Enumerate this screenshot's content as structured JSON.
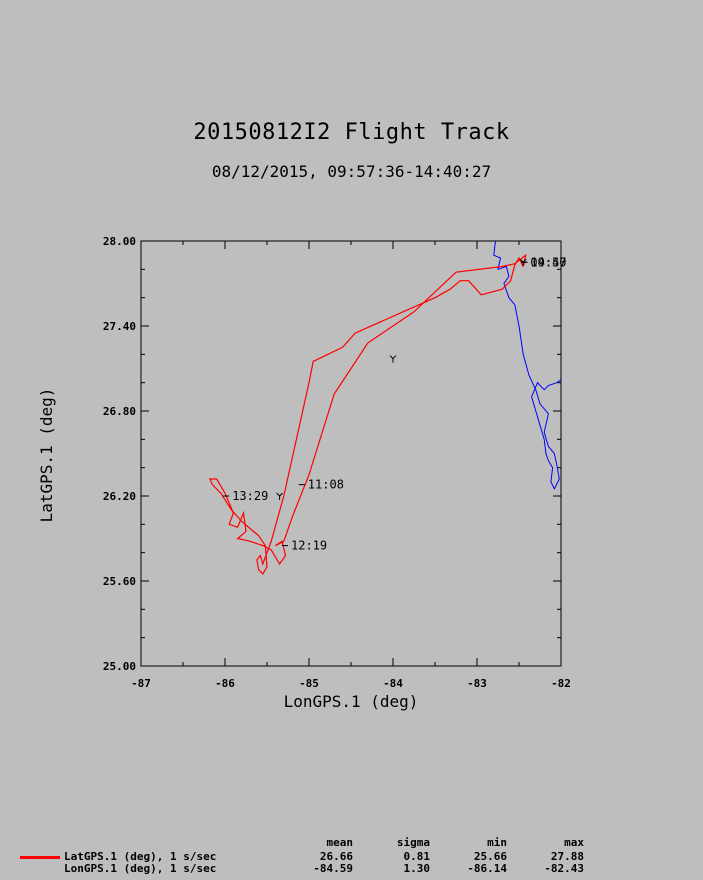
{
  "title": "20150812I2 Flight Track",
  "subtitle": "08/12/2015, 09:57:36-14:40:27",
  "chart_data": {
    "type": "line",
    "xlabel": "LonGPS.1 (deg)",
    "ylabel": "LatGPS.1 (deg)",
    "xlim": [
      -87,
      -82
    ],
    "ylim": [
      25.0,
      28.0
    ],
    "xticks": [
      "-87",
      "-86",
      "-85",
      "-84",
      "-83",
      "-82"
    ],
    "yticks": [
      "25.00",
      "25.60",
      "26.20",
      "26.80",
      "27.40",
      "28.00"
    ],
    "grid": false,
    "series": [
      {
        "name": "LatGPS.1 (deg), 1 s/sec",
        "color": "#ff0000",
        "points": [
          [
            -82.45,
            27.82
          ],
          [
            -82.5,
            27.88
          ],
          [
            -82.55,
            27.83
          ],
          [
            -82.6,
            27.72
          ],
          [
            -82.7,
            27.66
          ],
          [
            -82.95,
            27.62
          ],
          [
            -83.1,
            27.72
          ],
          [
            -83.2,
            27.72
          ],
          [
            -83.32,
            27.66
          ],
          [
            -83.5,
            27.6
          ],
          [
            -84.45,
            27.35
          ],
          [
            -84.6,
            27.25
          ],
          [
            -84.95,
            27.15
          ],
          [
            -85.0,
            27.0
          ],
          [
            -85.3,
            26.2
          ],
          [
            -85.45,
            25.88
          ],
          [
            -85.55,
            25.72
          ],
          [
            -85.58,
            25.78
          ],
          [
            -85.62,
            25.75
          ],
          [
            -85.6,
            25.68
          ],
          [
            -85.55,
            25.65
          ],
          [
            -85.5,
            25.7
          ],
          [
            -85.52,
            25.85
          ],
          [
            -85.6,
            25.92
          ],
          [
            -85.8,
            26.02
          ],
          [
            -85.92,
            26.1
          ],
          [
            -86.05,
            26.22
          ],
          [
            -86.15,
            26.28
          ],
          [
            -86.18,
            26.32
          ],
          [
            -86.1,
            26.32
          ],
          [
            -86.0,
            26.22
          ],
          [
            -85.95,
            26.15
          ],
          [
            -85.9,
            26.08
          ],
          [
            -85.95,
            26.0
          ],
          [
            -85.85,
            25.98
          ],
          [
            -85.78,
            26.08
          ],
          [
            -85.75,
            25.95
          ],
          [
            -85.85,
            25.9
          ],
          [
            -85.7,
            25.88
          ],
          [
            -85.55,
            25.85
          ],
          [
            -85.45,
            25.82
          ],
          [
            -85.35,
            25.72
          ],
          [
            -85.28,
            25.78
          ],
          [
            -85.32,
            25.88
          ],
          [
            -85.4,
            25.85
          ],
          [
            -85.3,
            25.88
          ],
          [
            -85.2,
            26.05
          ],
          [
            -85.0,
            26.35
          ],
          [
            -84.7,
            26.92
          ],
          [
            -84.5,
            27.1
          ],
          [
            -84.3,
            27.28
          ],
          [
            -83.75,
            27.5
          ],
          [
            -83.25,
            27.78
          ],
          [
            -82.7,
            27.82
          ],
          [
            -82.55,
            27.84
          ],
          [
            -82.42,
            27.9
          ],
          [
            -82.45,
            27.82
          ]
        ]
      },
      {
        "name": "LonGPS.1 (deg), 1 s/sec",
        "color": "#ff0000",
        "points": []
      }
    ],
    "coastline": {
      "color": "#0000ff",
      "points": [
        [
          -82.78,
          28.0
        ],
        [
          -82.8,
          27.9
        ],
        [
          -82.72,
          27.88
        ],
        [
          -82.75,
          27.8
        ],
        [
          -82.65,
          27.82
        ],
        [
          -82.62,
          27.75
        ],
        [
          -82.68,
          27.7
        ],
        [
          -82.62,
          27.6
        ],
        [
          -82.55,
          27.55
        ],
        [
          -82.5,
          27.4
        ],
        [
          -82.45,
          27.2
        ],
        [
          -82.38,
          27.05
        ],
        [
          -82.3,
          26.95
        ],
        [
          -82.25,
          26.85
        ],
        [
          -82.15,
          26.78
        ],
        [
          -82.2,
          26.65
        ],
        [
          -82.15,
          26.55
        ],
        [
          -82.08,
          26.5
        ],
        [
          -82.05,
          26.42
        ],
        [
          -82.02,
          26.32
        ],
        [
          -82.08,
          26.25
        ],
        [
          -82.12,
          26.3
        ],
        [
          -82.1,
          26.4
        ],
        [
          -82.15,
          26.45
        ],
        [
          -82.18,
          26.5
        ],
        [
          -82.2,
          26.6
        ],
        [
          -82.25,
          26.7
        ],
        [
          -82.3,
          26.8
        ],
        [
          -82.35,
          26.9
        ],
        [
          -82.28,
          27.0
        ],
        [
          -82.2,
          26.95
        ],
        [
          -82.15,
          26.98
        ],
        [
          -82.05,
          27.0
        ],
        [
          -82.0,
          27.02
        ]
      ]
    },
    "annotations": [
      {
        "label": "11:08",
        "x": -85.05,
        "y": 26.28
      },
      {
        "label": "12:19",
        "x": -85.25,
        "y": 25.85
      },
      {
        "label": "13:29",
        "x": -85.95,
        "y": 26.2
      },
      {
        "label": "09:57",
        "x": -82.4,
        "y": 27.85
      },
      {
        "label": "14:40",
        "x": -82.4,
        "y": 27.85
      }
    ],
    "markers": [
      {
        "x": -85.35,
        "y": 26.2
      },
      {
        "x": -84.0,
        "y": 27.17
      },
      {
        "x": -82.45,
        "y": 27.85
      }
    ]
  },
  "stats": {
    "headers": {
      "mean": "mean",
      "sigma": "sigma",
      "min": "min",
      "max": "max"
    },
    "rows": [
      {
        "label": "LatGPS.1 (deg), 1 s/sec",
        "mean": "26.66",
        "sigma": "0.81",
        "min": "25.66",
        "max": "27.88"
      },
      {
        "label": "LonGPS.1 (deg), 1 s/sec",
        "mean": "-84.59",
        "sigma": "1.30",
        "min": "-86.14",
        "max": "-82.43"
      }
    ]
  }
}
